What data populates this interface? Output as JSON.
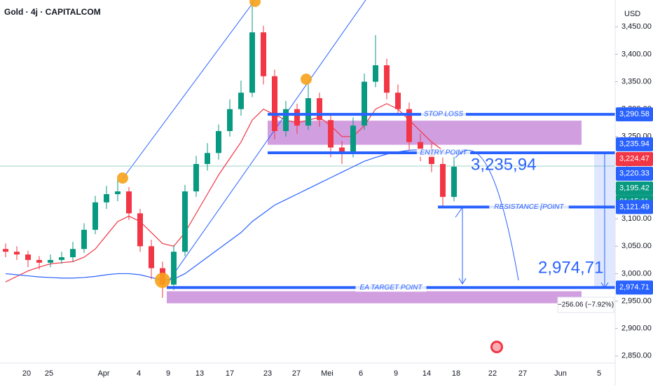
{
  "header": {
    "symbol": "Gold · 4j · CAPITALCOM",
    "currency": "USD"
  },
  "chart_data": {
    "type": "candlestick",
    "ylim": [
      2837,
      3499
    ],
    "yticks": [
      {
        "value": 2850,
        "label": "2,850.00"
      },
      {
        "value": 2900,
        "label": "2,900.00"
      },
      {
        "value": 2950,
        "label": "2,950.00"
      },
      {
        "value": 3000,
        "label": "3,000.00"
      },
      {
        "value": 3050,
        "label": "3,050.00"
      },
      {
        "value": 3100,
        "label": "3,100.00"
      },
      {
        "value": 3150,
        "label": "3,150.00"
      },
      {
        "value": 3200,
        "label": "3,200.00"
      },
      {
        "value": 3250,
        "label": "3,250.00"
      },
      {
        "value": 3300,
        "label": "3,300.00"
      },
      {
        "value": 3350,
        "label": "3,350.00"
      },
      {
        "value": 3400,
        "label": "3,400.00"
      },
      {
        "value": 3450,
        "label": "3,450.00"
      }
    ],
    "xticks": [
      "20",
      "25",
      "Apr",
      "4",
      "9",
      "13",
      "17",
      "23",
      "27",
      "Mei",
      "6",
      "9",
      "14",
      "18",
      "22",
      "27",
      "Jun",
      "5"
    ],
    "up_color": "#089981",
    "down_color": "#f23645",
    "ohlc": [
      [
        3045,
        3055,
        3030,
        3040
      ],
      [
        3040,
        3050,
        3025,
        3035
      ],
      [
        3035,
        3042,
        3012,
        3025
      ],
      [
        3025,
        3032,
        3008,
        3020
      ],
      [
        3020,
        3035,
        3012,
        3025
      ],
      [
        3025,
        3040,
        3018,
        3030
      ],
      [
        3030,
        3058,
        3022,
        3045
      ],
      [
        3045,
        3092,
        3038,
        3080
      ],
      [
        3080,
        3142,
        3072,
        3130
      ],
      [
        3130,
        3160,
        3118,
        3145
      ],
      [
        3145,
        3172,
        3132,
        3150
      ],
      [
        3150,
        3158,
        3098,
        3110
      ],
      [
        3110,
        3118,
        3040,
        3050
      ],
      [
        3050,
        3062,
        2990,
        3010
      ],
      [
        3010,
        3022,
        2956,
        2980
      ],
      [
        2980,
        3052,
        2970,
        3040
      ],
      [
        3040,
        3162,
        3032,
        3150
      ],
      [
        3150,
        3215,
        3140,
        3200
      ],
      [
        3200,
        3238,
        3188,
        3220
      ],
      [
        3220,
        3272,
        3208,
        3260
      ],
      [
        3260,
        3318,
        3250,
        3300
      ],
      [
        3300,
        3352,
        3288,
        3330
      ],
      [
        3330,
        3498,
        3322,
        3440
      ],
      [
        3440,
        3452,
        3345,
        3360
      ],
      [
        3360,
        3372,
        3245,
        3260
      ],
      [
        3260,
        3315,
        3250,
        3300
      ],
      [
        3300,
        3310,
        3255,
        3270
      ],
      [
        3270,
        3345,
        3262,
        3320
      ],
      [
        3320,
        3330,
        3268,
        3280
      ],
      [
        3280,
        3290,
        3212,
        3230
      ],
      [
        3230,
        3242,
        3200,
        3220
      ],
      [
        3220,
        3285,
        3212,
        3270
      ],
      [
        3270,
        3365,
        3262,
        3350
      ],
      [
        3350,
        3435,
        3340,
        3380
      ],
      [
        3380,
        3392,
        3318,
        3330
      ],
      [
        3330,
        3345,
        3288,
        3300
      ],
      [
        3300,
        3312,
        3226,
        3240
      ],
      [
        3240,
        3255,
        3205,
        3225
      ],
      [
        3225,
        3238,
        3185,
        3200
      ],
      [
        3200,
        3212,
        3120,
        3140
      ],
      [
        3140,
        3215,
        3132,
        3195
      ]
    ],
    "ma_fast": {
      "color": "#f23645",
      "values": [
        2985,
        2995,
        3005,
        3012,
        3018,
        3020,
        3022,
        3030,
        3045,
        3070,
        3095,
        3105,
        3095,
        3075,
        3055,
        3050,
        3075,
        3110,
        3145,
        3180,
        3210,
        3240,
        3280,
        3300,
        3290,
        3280,
        3275,
        3280,
        3285,
        3270,
        3250,
        3250,
        3270,
        3300,
        3310,
        3300,
        3280,
        3260,
        3240,
        3225,
        3215
      ]
    },
    "ma_slow": {
      "color": "#2962ff",
      "values": [
        3000,
        2998,
        2996,
        2994,
        2993,
        2992,
        2992,
        2993,
        2995,
        2998,
        3000,
        3000,
        2998,
        2993,
        2988,
        2990,
        3000,
        3015,
        3030,
        3045,
        3060,
        3075,
        3095,
        3110,
        3125,
        3135,
        3145,
        3155,
        3165,
        3175,
        3185,
        3195,
        3205,
        3212,
        3218,
        3222,
        3225,
        3226,
        3224,
        3222,
        3220
      ]
    },
    "levels": [
      {
        "name": "STOP LOSS",
        "value": 3290.58,
        "color": "#2962ff"
      },
      {
        "name": "ENTRY POINT",
        "value": 3220.33,
        "color": "#2962ff"
      },
      {
        "name": "RESISTANCE [POINT",
        "value": 3121.49,
        "color": "#2962ff"
      },
      {
        "name": "EA TARGET POINT",
        "value": 2974.71,
        "color": "#2962ff"
      }
    ],
    "zones": [
      {
        "from": 3235,
        "to": 3279,
        "color": "#c27ed6"
      },
      {
        "from": 2946,
        "to": 2968,
        "color": "#c27ed6"
      }
    ],
    "price_labels": [
      {
        "value": 3290.58,
        "label": "3,290.58",
        "color": "#2962ff"
      },
      {
        "value": 3235.94,
        "label": "3,235.94",
        "color": "#2962ff"
      },
      {
        "value": 3224.47,
        "label": "3,224.47",
        "color": "#f23645"
      },
      {
        "value": 3220.33,
        "label": "3,220.33",
        "color": "#2962ff"
      },
      {
        "value": 3195.42,
        "label": "3,195.42",
        "color": "#089981"
      },
      {
        "value": 3121.49,
        "label": "3,121.49",
        "color": "#2962ff"
      },
      {
        "value": 2974.71,
        "label": "2,974.71",
        "color": "#2962ff"
      }
    ],
    "countdown": "01:15:11",
    "annotations": [
      "3,235,94",
      "2,974,71"
    ],
    "measure_label": "−256.06 (−7.92%)"
  }
}
